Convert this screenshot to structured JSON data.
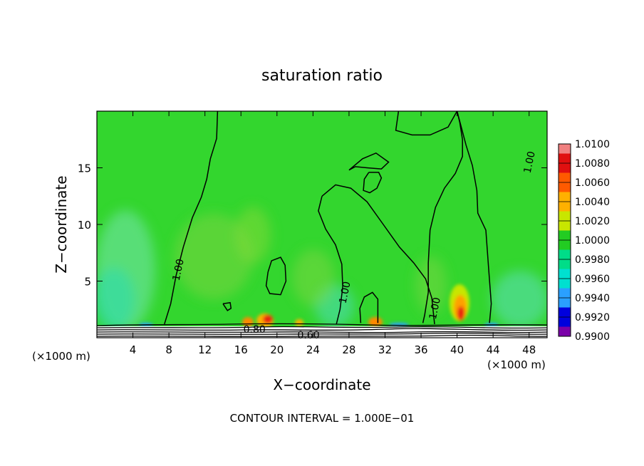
{
  "chart_data": {
    "type": "heatmap",
    "title": "saturation ratio",
    "xlabel": "X−coordinate",
    "ylabel": "Z−coordinate",
    "x_unit_left": "(×1000 m)",
    "x_unit_right": "(×1000 m)",
    "footer": "CONTOUR INTERVAL = 1.000E−01",
    "xlim": [
      0,
      50
    ],
    "ylim": [
      0,
      20
    ],
    "x_ticks": [
      4,
      8,
      12,
      16,
      20,
      24,
      28,
      32,
      36,
      40,
      44,
      48
    ],
    "y_ticks": [
      5,
      10,
      15
    ],
    "colorbar": {
      "levels": [
        "1.0100",
        "1.0080",
        "1.0060",
        "1.0040",
        "1.0020",
        "1.0000",
        "0.9980",
        "0.9960",
        "0.9940",
        "0.9920",
        "0.9900"
      ],
      "colors": [
        "#f08080",
        "#e01010",
        "#ff5a00",
        "#ffb000",
        "#c8e600",
        "#22cc22",
        "#00dd88",
        "#00e0d0",
        "#2aa0ff",
        "#0000dd",
        "#7a00a8"
      ]
    },
    "field_color": "#33d62e",
    "contour_labels": [
      {
        "text": "1.00",
        "x": 9.0,
        "z": 6.0
      },
      {
        "text": "1.00",
        "x": 27.5,
        "z": 4.0
      },
      {
        "text": "1.00",
        "x": 37.5,
        "z": 2.6
      },
      {
        "text": "1.00",
        "x": 48.0,
        "z": 15.5
      },
      {
        "text": "0.80",
        "x": 17.5,
        "z": 0.75
      },
      {
        "text": "0.60",
        "x": 23.5,
        "z": 0.25
      }
    ],
    "contours_1_00": [
      [
        [
          7.5,
          1.2
        ],
        [
          8.2,
          3.0
        ],
        [
          8.8,
          5.5
        ],
        [
          9.6,
          8.0
        ],
        [
          10.6,
          10.6
        ],
        [
          11.6,
          12.4
        ],
        [
          12.2,
          14.0
        ],
        [
          12.6,
          15.8
        ],
        [
          13.3,
          17.6
        ],
        [
          13.4,
          20.0
        ]
      ],
      [
        [
          25.0,
          12.5
        ],
        [
          26.5,
          13.5
        ],
        [
          28.2,
          13.2
        ],
        [
          30.0,
          12.0
        ],
        [
          31.8,
          10.0
        ],
        [
          33.6,
          8.0
        ],
        [
          35.2,
          6.6
        ],
        [
          36.5,
          5.2
        ],
        [
          37.2,
          3.5
        ],
        [
          37.5,
          1.2
        ]
      ],
      [
        [
          25.0,
          12.5
        ],
        [
          24.6,
          11.2
        ],
        [
          25.4,
          9.6
        ],
        [
          26.5,
          8.2
        ],
        [
          27.2,
          6.5
        ],
        [
          27.3,
          4.5
        ],
        [
          27.0,
          2.5
        ],
        [
          26.6,
          1.2
        ]
      ],
      [
        [
          33.5,
          20.0
        ],
        [
          33.2,
          18.3
        ],
        [
          35.0,
          17.9
        ],
        [
          37.0,
          17.9
        ],
        [
          39.0,
          18.6
        ],
        [
          40.0,
          20.0
        ]
      ],
      [
        [
          40.0,
          20.0
        ],
        [
          40.3,
          19.0
        ],
        [
          40.6,
          17.5
        ],
        [
          40.6,
          16.0
        ],
        [
          39.8,
          14.5
        ],
        [
          38.6,
          13.2
        ],
        [
          37.6,
          11.5
        ],
        [
          37.0,
          9.5
        ],
        [
          36.8,
          6.6
        ],
        [
          36.8,
          4.0
        ],
        [
          36.4,
          2.0
        ],
        [
          36.2,
          1.3
        ]
      ],
      [
        [
          40.0,
          20.0
        ],
        [
          40.5,
          18.5
        ],
        [
          41.0,
          17.0
        ],
        [
          41.7,
          15.2
        ],
        [
          42.2,
          13.0
        ],
        [
          42.3,
          11.0
        ],
        [
          43.2,
          9.5
        ],
        [
          43.5,
          6.2
        ],
        [
          43.8,
          3.0
        ],
        [
          43.6,
          1.3
        ]
      ],
      [
        [
          28.0,
          14.8
        ],
        [
          29.5,
          15.8
        ],
        [
          31.0,
          16.3
        ],
        [
          32.4,
          15.5
        ],
        [
          31.6,
          14.9
        ],
        [
          30.0,
          15.0
        ],
        [
          28.7,
          15.1
        ],
        [
          28.0,
          14.8
        ]
      ],
      [
        [
          30.2,
          14.6
        ],
        [
          29.7,
          14.0
        ],
        [
          29.6,
          13.0
        ],
        [
          30.3,
          12.8
        ],
        [
          31.1,
          13.2
        ],
        [
          31.6,
          14.1
        ],
        [
          31.3,
          14.6
        ],
        [
          30.2,
          14.6
        ]
      ],
      [
        [
          19.0,
          5.8
        ],
        [
          19.4,
          6.8
        ],
        [
          20.4,
          7.1
        ],
        [
          20.9,
          6.4
        ],
        [
          21.0,
          5.0
        ],
        [
          20.4,
          3.8
        ],
        [
          19.2,
          3.9
        ],
        [
          18.8,
          4.6
        ],
        [
          19.0,
          5.8
        ]
      ],
      [
        [
          14.0,
          3.0
        ],
        [
          14.5,
          2.4
        ],
        [
          14.9,
          2.6
        ],
        [
          14.8,
          3.1
        ],
        [
          14.0,
          3.0
        ]
      ],
      [
        [
          29.3,
          1.3
        ],
        [
          29.2,
          2.6
        ],
        [
          29.7,
          3.6
        ],
        [
          30.6,
          4.0
        ],
        [
          31.2,
          3.4
        ],
        [
          31.2,
          1.3
        ]
      ]
    ]
  }
}
